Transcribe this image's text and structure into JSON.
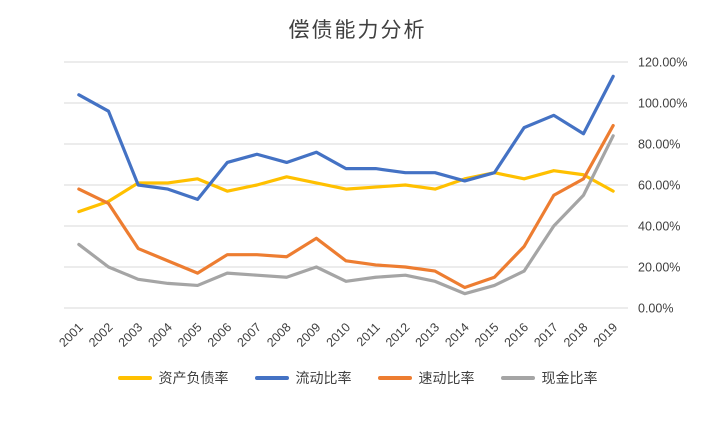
{
  "chart_data": {
    "type": "line",
    "title": "偿债能力分析",
    "categories": [
      "2001",
      "2002",
      "2003",
      "2004",
      "2005",
      "2006",
      "2007",
      "2008",
      "2009",
      "2010",
      "2011",
      "2012",
      "2013",
      "2014",
      "2015",
      "2016",
      "2017",
      "2018",
      "2019"
    ],
    "yticks": [
      "0.00%",
      "20.00%",
      "40.00%",
      "60.00%",
      "80.00%",
      "100.00%",
      "120.00%"
    ],
    "ylim": [
      0,
      120
    ],
    "grid": true,
    "legend_position": "bottom",
    "colors": {
      "gridline": "#d9d9d9",
      "tick_text": "#404040",
      "title_text": "#404040"
    },
    "series": [
      {
        "name": "资产负债率",
        "color": "#FFC000",
        "values": [
          47,
          52,
          61,
          61,
          63,
          57,
          60,
          64,
          61,
          58,
          59,
          60,
          58,
          63,
          66,
          63,
          67,
          65,
          57
        ]
      },
      {
        "name": "流动比率",
        "color": "#4472C4",
        "values": [
          104,
          96,
          60,
          58,
          53,
          71,
          75,
          71,
          76,
          68,
          68,
          66,
          66,
          62,
          66,
          88,
          94,
          85,
          113
        ]
      },
      {
        "name": "速动比率",
        "color": "#ED7D31",
        "values": [
          58,
          51,
          29,
          23,
          17,
          26,
          26,
          25,
          34,
          23,
          21,
          20,
          18,
          10,
          15,
          30,
          55,
          63,
          89
        ]
      },
      {
        "name": "现金比率",
        "color": "#A5A5A5",
        "values": [
          31,
          20,
          14,
          12,
          11,
          17,
          16,
          15,
          20,
          13,
          15,
          16,
          13,
          7,
          11,
          18,
          40,
          55,
          84
        ]
      }
    ]
  }
}
